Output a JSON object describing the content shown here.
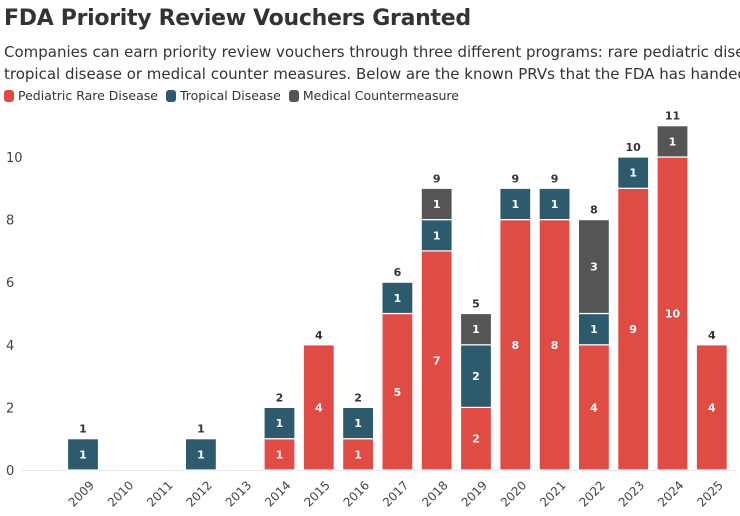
{
  "title": "FDA Priority Review Vouchers Granted",
  "subtitle_lines": [
    "Companies can earn priority review vouchers through three different programs: rare pediatric disease,",
    "tropical disease or medical counter measures. Below are the known PRVs that the FDA has handed out"
  ],
  "chart_data": {
    "type": "bar",
    "stacked": true,
    "title": "FDA Priority Review Vouchers Granted",
    "categories": [
      "2009",
      "2010",
      "2011",
      "2012",
      "2013",
      "2014",
      "2015",
      "2016",
      "2017",
      "2018",
      "2019",
      "2020",
      "2021",
      "2022",
      "2023",
      "2024",
      "2025"
    ],
    "series": [
      {
        "name": "Pediatric Rare Disease",
        "color": "#e04b44",
        "values": [
          0,
          0,
          0,
          0,
          0,
          1,
          4,
          1,
          5,
          7,
          2,
          8,
          8,
          4,
          9,
          10,
          4
        ]
      },
      {
        "name": "Tropical Disease",
        "color": "#2e5a6e",
        "values": [
          1,
          0,
          0,
          1,
          0,
          1,
          0,
          1,
          1,
          1,
          2,
          1,
          1,
          1,
          1,
          0,
          0
        ]
      },
      {
        "name": "Medical Countermeasure",
        "color": "#555555",
        "values": [
          0,
          0,
          0,
          0,
          0,
          0,
          0,
          0,
          0,
          1,
          1,
          0,
          0,
          3,
          0,
          1,
          0
        ]
      }
    ],
    "totals": [
      1,
      0,
      0,
      1,
      0,
      2,
      4,
      2,
      6,
      9,
      5,
      9,
      9,
      8,
      10,
      11,
      4
    ],
    "y_ticks": [
      0,
      2,
      4,
      6,
      8,
      10
    ],
    "ylim": [
      0,
      11.6
    ],
    "grid": false,
    "legend_position": "top-left"
  }
}
